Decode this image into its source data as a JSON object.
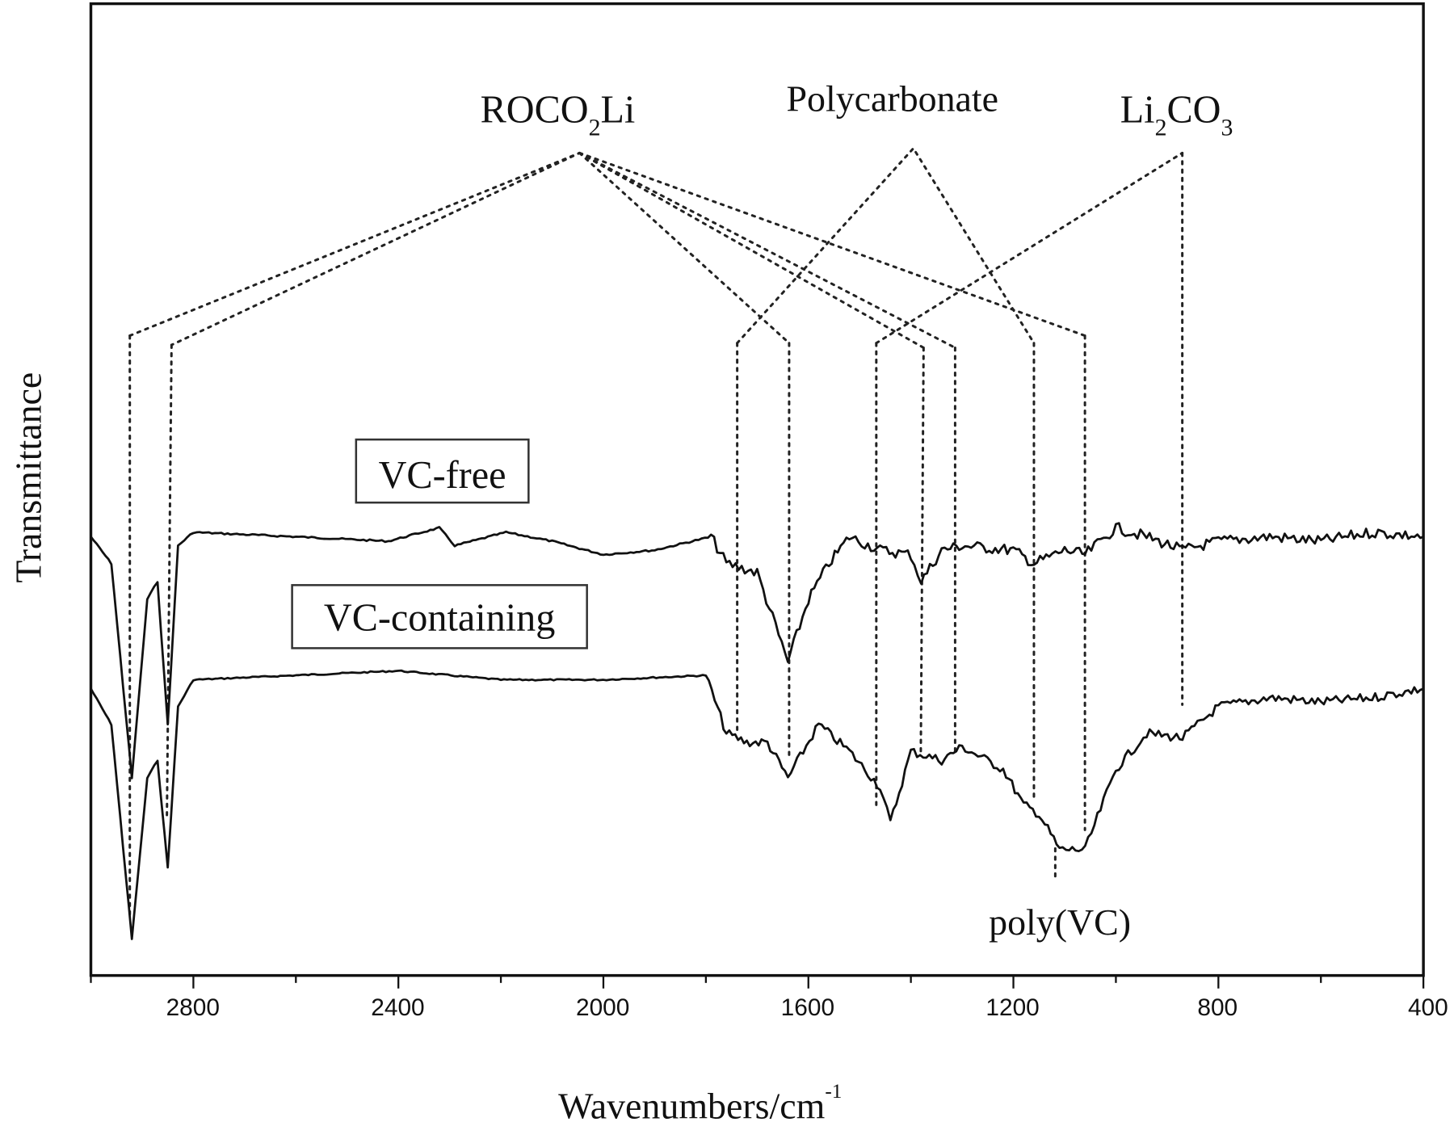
{
  "chart_data": {
    "type": "line",
    "title": "",
    "xlabel": "Wavenumbers/cm-1",
    "xlabel_main": "Wavenumbers/cm",
    "xlabel_sup": "-1",
    "ylabel": "Transmittance",
    "xlim": [
      3000,
      400
    ],
    "x_inverted": true,
    "x_ticks": [
      2800,
      2400,
      2000,
      1600,
      1200,
      800,
      400
    ],
    "x_tick_labels": [
      "2800",
      "2400",
      "2000",
      "1600",
      "1200",
      "800",
      "400"
    ],
    "y_ticks": [],
    "grid": false,
    "legend_position": "inline boxed labels",
    "series": [
      {
        "name": "VC-free",
        "description": "upper trace, offset",
        "key_minima_cm-1": [
          2920,
          2850,
          1740,
          1640,
          1460,
          1380,
          1310,
          1160,
          1080,
          870
        ],
        "points": [
          [
            3000,
            0.47
          ],
          [
            2960,
            0.44
          ],
          [
            2920,
            0.2
          ],
          [
            2890,
            0.4
          ],
          [
            2870,
            0.42
          ],
          [
            2850,
            0.26
          ],
          [
            2830,
            0.46
          ],
          [
            2800,
            0.475
          ],
          [
            2600,
            0.47
          ],
          [
            2420,
            0.465
          ],
          [
            2320,
            0.48
          ],
          [
            2290,
            0.46
          ],
          [
            2190,
            0.475
          ],
          [
            2100,
            0.465
          ],
          [
            2000,
            0.45
          ],
          [
            1900,
            0.455
          ],
          [
            1790,
            0.47
          ],
          [
            1760,
            0.44
          ],
          [
            1700,
            0.43
          ],
          [
            1640,
            0.33
          ],
          [
            1600,
            0.4
          ],
          [
            1560,
            0.44
          ],
          [
            1520,
            0.47
          ],
          [
            1460,
            0.455
          ],
          [
            1400,
            0.45
          ],
          [
            1380,
            0.42
          ],
          [
            1340,
            0.455
          ],
          [
            1300,
            0.46
          ],
          [
            1200,
            0.455
          ],
          [
            1160,
            0.44
          ],
          [
            1100,
            0.455
          ],
          [
            1060,
            0.45
          ],
          [
            1000,
            0.48
          ],
          [
            940,
            0.47
          ],
          [
            870,
            0.455
          ],
          [
            800,
            0.465
          ],
          [
            700,
            0.47
          ],
          [
            600,
            0.465
          ],
          [
            500,
            0.475
          ],
          [
            400,
            0.47
          ]
        ]
      },
      {
        "name": "VC-containing",
        "description": "lower trace, offset",
        "key_minima_cm-1": [
          2920,
          2850,
          1740,
          1640,
          1440,
          1160,
          1110,
          1060,
          870
        ],
        "points": [
          [
            3000,
            0.3
          ],
          [
            2960,
            0.26
          ],
          [
            2920,
            0.02
          ],
          [
            2890,
            0.2
          ],
          [
            2870,
            0.22
          ],
          [
            2850,
            0.1
          ],
          [
            2830,
            0.28
          ],
          [
            2800,
            0.31
          ],
          [
            2600,
            0.315
          ],
          [
            2400,
            0.32
          ],
          [
            2200,
            0.31
          ],
          [
            2000,
            0.31
          ],
          [
            1800,
            0.315
          ],
          [
            1760,
            0.25
          ],
          [
            1720,
            0.24
          ],
          [
            1680,
            0.24
          ],
          [
            1640,
            0.2
          ],
          [
            1580,
            0.26
          ],
          [
            1520,
            0.23
          ],
          [
            1460,
            0.19
          ],
          [
            1440,
            0.15
          ],
          [
            1400,
            0.23
          ],
          [
            1340,
            0.22
          ],
          [
            1300,
            0.235
          ],
          [
            1220,
            0.21
          ],
          [
            1180,
            0.17
          ],
          [
            1150,
            0.16
          ],
          [
            1110,
            0.12
          ],
          [
            1060,
            0.12
          ],
          [
            1000,
            0.21
          ],
          [
            940,
            0.25
          ],
          [
            870,
            0.245
          ],
          [
            800,
            0.28
          ],
          [
            700,
            0.29
          ],
          [
            600,
            0.285
          ],
          [
            500,
            0.29
          ],
          [
            400,
            0.3
          ]
        ]
      }
    ],
    "annotations": [
      {
        "text": "ROCO2Li",
        "display": [
          "ROCO",
          "2",
          "Li"
        ],
        "assigned_peaks_cm-1": [
          2920,
          2850,
          1640,
          1380,
          1310,
          1060
        ]
      },
      {
        "text": "Polycarbonate",
        "assigned_peaks_cm-1": [
          1740,
          1160
        ]
      },
      {
        "text": "Li2CO3",
        "display": [
          "Li",
          "2",
          "CO",
          "3"
        ],
        "assigned_peaks_cm-1": [
          1460,
          870
        ]
      },
      {
        "text": "poly(VC)",
        "assigned_peaks_cm-1": [
          1110
        ]
      }
    ]
  },
  "labels": {
    "ylabel": "Transmittance",
    "xlabel_main": "Wavenumbers/cm",
    "xlabel_sup": "-1",
    "series_free": "VC-free",
    "series_containing": "VC-containing",
    "roco2li": {
      "a": "ROCO",
      "sub": "2",
      "b": "Li"
    },
    "polycarbonate": "Polycarbonate",
    "li2co3": {
      "a": "Li",
      "sub1": "2",
      "b": "CO",
      "sub2": "3"
    },
    "polyvc": "poly(VC)",
    "ticks": [
      "2800",
      "2400",
      "2000",
      "1600",
      "1200",
      "800",
      "400"
    ]
  }
}
